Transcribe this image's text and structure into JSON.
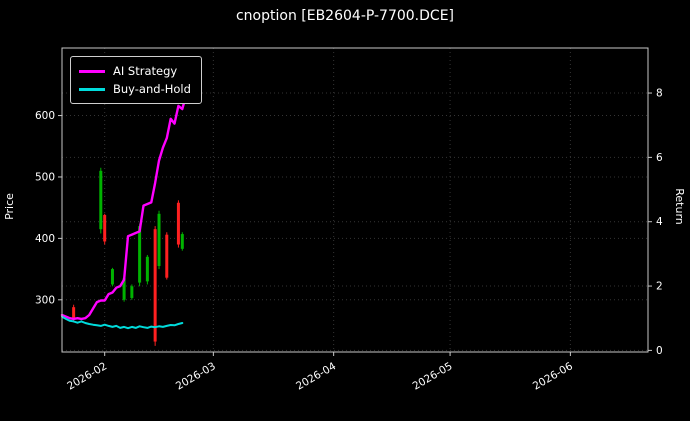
{
  "window": {
    "title": "cnoption [EB2604-P-7700.DCE]"
  },
  "chart_data": {
    "type": "line",
    "subtype": "backtest-equity-curves-with-candlesticks",
    "title": "cnoption [EB2604-P-7700.DCE]",
    "background_color": "#000000",
    "grid": "dotted",
    "x_axis": {
      "start_date": "2026-01-21",
      "domain_days": [
        0,
        151
      ],
      "tick_labels": [
        "2026-02",
        "2026-03",
        "2026-04",
        "2026-05",
        "2026-06"
      ],
      "tick_days": [
        11,
        39,
        70,
        100,
        131
      ],
      "label_rotation_deg": 30
    },
    "left_axis": {
      "label": "Price",
      "ticks": [
        300,
        400,
        500,
        600
      ],
      "range": [
        215,
        710
      ]
    },
    "right_axis": {
      "label": "Return",
      "ticks": [
        0,
        2,
        4,
        6,
        8
      ],
      "range": [
        -0.05,
        9.4
      ]
    },
    "legend": {
      "position": "upper-left",
      "items": [
        {
          "label": "AI Strategy",
          "color": "#ff00ff"
        },
        {
          "label": "Buy-and-Hold",
          "color": "#00dcdc"
        }
      ]
    },
    "series": [
      {
        "name": "AI Strategy",
        "axis": "right",
        "color": "#ff00ff",
        "width": 2.4,
        "points": [
          [
            0,
            1.1
          ],
          [
            1,
            1.05
          ],
          [
            2,
            1.0
          ],
          [
            3,
            0.98
          ],
          [
            4,
            1.0
          ],
          [
            5,
            0.98
          ],
          [
            6,
            1.0
          ],
          [
            7,
            1.1
          ],
          [
            8,
            1.3
          ],
          [
            9,
            1.5
          ],
          [
            10,
            1.55
          ],
          [
            11,
            1.55
          ],
          [
            12,
            1.75
          ],
          [
            13,
            1.8
          ],
          [
            14,
            1.95
          ],
          [
            15,
            2.0
          ],
          [
            16,
            2.2
          ],
          [
            17,
            3.55
          ],
          [
            18,
            3.6
          ],
          [
            19,
            3.65
          ],
          [
            20,
            3.7
          ],
          [
            21,
            4.5
          ],
          [
            22,
            4.55
          ],
          [
            23,
            4.6
          ],
          [
            24,
            5.2
          ],
          [
            25,
            5.9
          ],
          [
            26,
            6.3
          ],
          [
            27,
            6.6
          ],
          [
            28,
            7.2
          ],
          [
            29,
            7.05
          ],
          [
            30,
            7.6
          ],
          [
            31,
            7.5
          ],
          [
            32,
            7.95
          ]
        ]
      },
      {
        "name": "Buy-and-Hold",
        "axis": "right",
        "color": "#00dcdc",
        "width": 2.0,
        "points": [
          [
            0,
            1.05
          ],
          [
            1,
            0.98
          ],
          [
            2,
            0.92
          ],
          [
            3,
            0.9
          ],
          [
            4,
            0.86
          ],
          [
            5,
            0.9
          ],
          [
            6,
            0.85
          ],
          [
            7,
            0.82
          ],
          [
            8,
            0.8
          ],
          [
            9,
            0.78
          ],
          [
            10,
            0.76
          ],
          [
            11,
            0.8
          ],
          [
            12,
            0.76
          ],
          [
            13,
            0.73
          ],
          [
            14,
            0.76
          ],
          [
            15,
            0.7
          ],
          [
            16,
            0.73
          ],
          [
            17,
            0.69
          ],
          [
            18,
            0.73
          ],
          [
            19,
            0.7
          ],
          [
            20,
            0.75
          ],
          [
            21,
            0.72
          ],
          [
            22,
            0.7
          ],
          [
            23,
            0.74
          ],
          [
            24,
            0.72
          ],
          [
            25,
            0.75
          ],
          [
            26,
            0.73
          ],
          [
            27,
            0.76
          ],
          [
            28,
            0.79
          ],
          [
            29,
            0.78
          ],
          [
            30,
            0.82
          ],
          [
            31,
            0.85
          ]
        ]
      }
    ],
    "candles": {
      "axis": "left",
      "up_color": "#00b300",
      "down_color": "#ff2020",
      "bars": [
        {
          "day": 3,
          "open": 288,
          "close": 268,
          "low": 263,
          "high": 292,
          "dir": "down"
        },
        {
          "day": 10,
          "open": 415,
          "close": 510,
          "low": 408,
          "high": 515,
          "dir": "up"
        },
        {
          "day": 11,
          "open": 438,
          "close": 395,
          "low": 390,
          "high": 440,
          "dir": "down"
        },
        {
          "day": 13,
          "open": 325,
          "close": 350,
          "low": 322,
          "high": 352,
          "dir": "up"
        },
        {
          "day": 16,
          "open": 300,
          "close": 335,
          "low": 297,
          "high": 338,
          "dir": "up"
        },
        {
          "day": 18,
          "open": 303,
          "close": 322,
          "low": 300,
          "high": 325,
          "dir": "up"
        },
        {
          "day": 20,
          "open": 328,
          "close": 420,
          "low": 322,
          "high": 424,
          "dir": "up"
        },
        {
          "day": 22,
          "open": 330,
          "close": 370,
          "low": 325,
          "high": 373,
          "dir": "up"
        },
        {
          "day": 24,
          "open": 415,
          "close": 232,
          "low": 225,
          "high": 420,
          "dir": "down"
        },
        {
          "day": 25,
          "open": 355,
          "close": 440,
          "low": 350,
          "high": 445,
          "dir": "up"
        },
        {
          "day": 27,
          "open": 406,
          "close": 336,
          "low": 333,
          "high": 410,
          "dir": "down"
        },
        {
          "day": 30,
          "open": 458,
          "close": 390,
          "low": 385,
          "high": 462,
          "dir": "down"
        },
        {
          "day": 31,
          "open": 383,
          "close": 407,
          "low": 380,
          "high": 410,
          "dir": "up"
        }
      ]
    },
    "style_colors": {
      "grid": "#353535",
      "spine": "#c8c8c8",
      "tick_text": "#ffffff"
    }
  }
}
